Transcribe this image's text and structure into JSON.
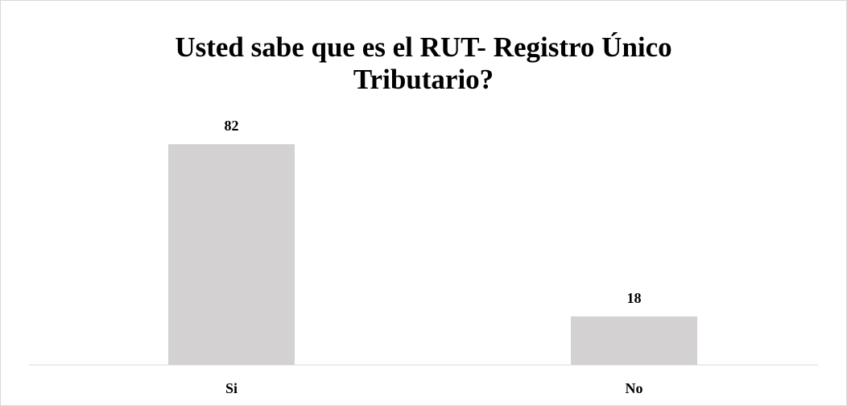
{
  "chart_data": {
    "type": "bar",
    "title": "Usted sabe que es el RUT- Registro Único Tributario?",
    "categories": [
      "Si",
      "No"
    ],
    "values": [
      82,
      18
    ],
    "color": "#d3d1d1"
  }
}
